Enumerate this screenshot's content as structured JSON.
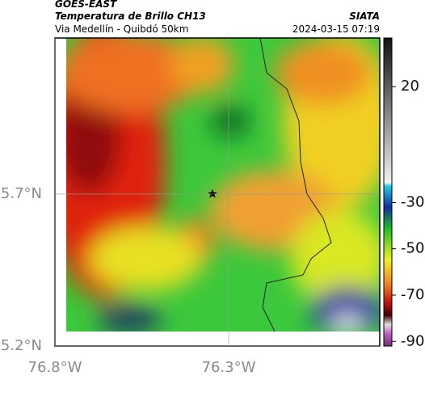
{
  "header": {
    "title": "GOES-EAST",
    "subtitle": "Temperatura de Brillo CH13",
    "region": "Via Medellín - Quibdó 50km",
    "source": "SIATA",
    "timestamp": "2024-03-15 07:19"
  },
  "map": {
    "xlim": [
      -76.8,
      -75.865
    ],
    "ylim": [
      5.2,
      6.213
    ],
    "xticks": [
      {
        "value": -76.8,
        "label": "76.8°W"
      },
      {
        "value": -76.3,
        "label": "76.3°W"
      }
    ],
    "yticks": [
      {
        "value": 5.2,
        "label": "5.2°N"
      },
      {
        "value": 5.7,
        "label": "5.7°N"
      }
    ]
  },
  "colorbar": {
    "lim": [
      41,
      -92
    ],
    "ticks": [
      20,
      -30,
      -50,
      -70,
      -90
    ]
  }
}
